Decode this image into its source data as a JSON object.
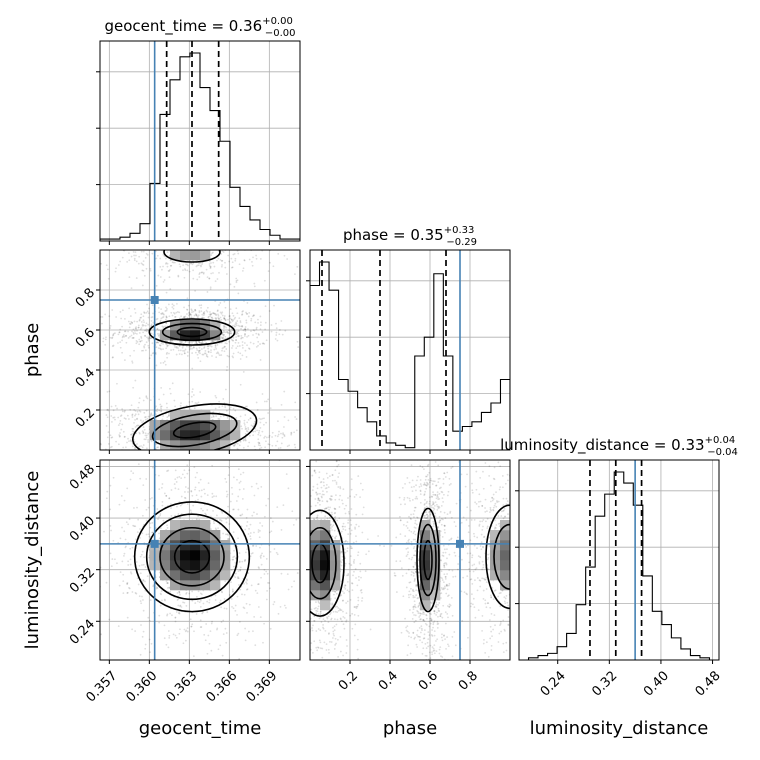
{
  "chart_data": {
    "type": "corner",
    "parameters": [
      "geocent_time",
      "phase",
      "luminosity_distance"
    ],
    "truths": {
      "geocent_time": 0.3604,
      "phase": 0.75,
      "luminosity_distance": 0.36
    },
    "axes": {
      "geocent_time": {
        "lim": [
          0.3563,
          0.3713
        ],
        "ticks": [
          0.357,
          0.36,
          0.363,
          0.366,
          0.369
        ],
        "tick_labels": [
          "0.357",
          "0.360",
          "0.363",
          "0.366",
          "0.369"
        ]
      },
      "phase": {
        "lim": [
          0.0,
          1.0
        ],
        "ticks": [
          0.2,
          0.4,
          0.6,
          0.8
        ],
        "tick_labels": [
          "0.2",
          "0.4",
          "0.6",
          "0.8"
        ]
      },
      "luminosity_distance": {
        "lim": [
          0.18,
          0.49
        ],
        "ticks": [
          0.24,
          0.32,
          0.4,
          0.48
        ],
        "tick_labels": [
          "0.24",
          "0.32",
          "0.40",
          "0.48"
        ]
      }
    },
    "titles": [
      {
        "param": "geocent_time",
        "prefix": "geocent_time = 0.36",
        "plus": "+0.00",
        "minus": "−0.00"
      },
      {
        "param": "phase",
        "prefix": "phase = 0.35",
        "plus": "+0.33",
        "minus": "−0.29"
      },
      {
        "param": "luminosity_distance",
        "prefix": "luminosity_distance = 0.33",
        "plus": "+0.04",
        "minus": "−0.04"
      }
    ],
    "quantiles": {
      "geocent_time": [
        0.3613,
        0.3632,
        0.3652
      ],
      "phase": [
        0.06,
        0.35,
        0.68
      ],
      "luminosity_distance": [
        0.29,
        0.33,
        0.37
      ]
    },
    "histograms": {
      "geocent_time": {
        "range": [
          0.3563,
          0.3713
        ],
        "counts": [
          1,
          1,
          2,
          4,
          9,
          30,
          66,
          84,
          96,
          98,
          80,
          68,
          52,
          28,
          18,
          11,
          6,
          3,
          1,
          1
        ]
      },
      "phase": {
        "range": [
          0.0,
          1.0
        ],
        "counts": [
          70,
          80,
          68,
          30,
          25,
          18,
          12,
          6,
          3,
          2,
          1,
          40,
          48,
          75,
          40,
          8,
          10,
          12,
          16,
          20,
          30
        ]
      },
      "luminosity_distance": {
        "range": [
          0.18,
          0.49
        ],
        "counts": [
          0,
          1,
          2,
          3,
          6,
          12,
          25,
          42,
          65,
          75,
          85,
          80,
          70,
          38,
          22,
          16,
          10,
          5,
          2,
          1,
          0
        ]
      }
    },
    "blobs": [
      {
        "x": "geocent_time",
        "y": "phase",
        "cx": 0.3632,
        "cy": 0.59,
        "sx": 0.0015,
        "sy": 0.035,
        "w": 1.0,
        "rot": 0
      },
      {
        "x": "geocent_time",
        "y": "phase",
        "cx": 0.3632,
        "cy": 0.09,
        "sx": 0.0022,
        "sy": 0.06,
        "w": 0.9,
        "rot": 0.9
      },
      {
        "x": "geocent_time",
        "y": "phase",
        "cx": 0.3632,
        "cy": 0.98,
        "sx": 0.0016,
        "sy": 0.04,
        "w": 0.4,
        "rot": 0
      },
      {
        "x": "geocent_time",
        "y": "luminosity_distance",
        "cx": 0.3632,
        "cy": 0.34,
        "sx": 0.0018,
        "sy": 0.035,
        "w": 1.0,
        "rot": 0
      },
      {
        "x": "phase",
        "y": "luminosity_distance",
        "cx": 0.06,
        "cy": 0.33,
        "sx": 0.05,
        "sy": 0.04,
        "w": 1.0,
        "rot": 0
      },
      {
        "x": "phase",
        "y": "luminosity_distance",
        "cx": 0.59,
        "cy": 0.33,
        "sx": 0.03,
        "sy": 0.045,
        "w": 0.9,
        "rot": 0
      },
      {
        "x": "phase",
        "y": "luminosity_distance",
        "cx": 0.98,
        "cy": 0.34,
        "sx": 0.06,
        "sy": 0.04,
        "w": 0.6,
        "rot": 0
      }
    ],
    "contours": [
      {
        "x": "geocent_time",
        "y": "phase",
        "cx": 0.3632,
        "cy": 0.59,
        "levels": [
          [
            0.0011,
            0.022
          ],
          [
            0.0022,
            0.042
          ],
          [
            0.0032,
            0.065
          ]
        ],
        "rot": 0
      },
      {
        "x": "geocent_time",
        "y": "phase",
        "cx": 0.3634,
        "cy": 0.1,
        "levels": [
          [
            0.0016,
            0.035
          ],
          [
            0.0032,
            0.075
          ],
          [
            0.0047,
            0.12
          ]
        ],
        "rot": 0.25
      },
      {
        "x": "geocent_time",
        "y": "phase",
        "cx": 0.3632,
        "cy": 0.99,
        "levels": [
          [
            0.0021,
            0.05
          ]
        ],
        "rot": 0
      },
      {
        "x": "geocent_time",
        "y": "luminosity_distance",
        "cx": 0.3632,
        "cy": 0.34,
        "levels": [
          [
            0.0013,
            0.025
          ],
          [
            0.0024,
            0.045
          ],
          [
            0.0034,
            0.066
          ],
          [
            0.0043,
            0.085
          ]
        ],
        "rot": 0
      },
      {
        "x": "phase",
        "y": "luminosity_distance",
        "cx": 0.05,
        "cy": 0.33,
        "levels": [
          [
            0.04,
            0.03
          ],
          [
            0.08,
            0.055
          ],
          [
            0.12,
            0.082
          ]
        ],
        "rot": 0
      },
      {
        "x": "phase",
        "y": "luminosity_distance",
        "cx": 0.59,
        "cy": 0.335,
        "levels": [
          [
            0.02,
            0.03
          ],
          [
            0.04,
            0.055
          ],
          [
            0.055,
            0.08
          ]
        ],
        "rot": 0
      },
      {
        "x": "phase",
        "y": "luminosity_distance",
        "cx": 1.0,
        "cy": 0.34,
        "levels": [
          [
            0.08,
            0.05
          ],
          [
            0.12,
            0.08
          ]
        ],
        "rot": 0
      }
    ],
    "colors": {
      "truth": "#4682b4",
      "hist": "#000000",
      "grid": "#b0b0b0",
      "scatter": "#000000"
    },
    "grid": true,
    "xlabels": [
      "geocent_time",
      "phase",
      "luminosity_distance"
    ],
    "ylabels": [
      "",
      "phase",
      "luminosity_distance"
    ]
  }
}
